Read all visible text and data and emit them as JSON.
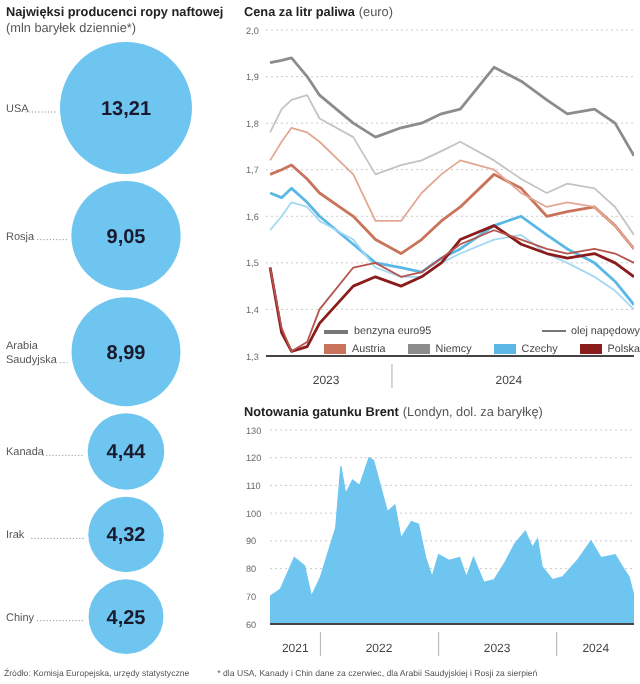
{
  "chart_data": [
    {
      "type": "other",
      "title": "Najwięksi producenci ropy naftowej",
      "subtitle": "(mln baryłek dziennie*)",
      "categories": [
        "USA",
        "Rosja",
        "Arabia Saudyjska",
        "Kanada",
        "Irak",
        "Chiny"
      ],
      "values": [
        13.21,
        9.05,
        8.99,
        4.44,
        4.32,
        4.25
      ],
      "value_labels": [
        "13,21",
        "9,05",
        "8,99",
        "4,44",
        "4,32",
        "4,25"
      ],
      "color": "#6ec6f0",
      "annotations": [
        "Źródło: Komisja Europejska, urzędy statystyczne"
      ]
    },
    {
      "type": "line",
      "title": "Cena za litr paliwa",
      "subtitle": "(euro)",
      "x": [
        "2023-08-06",
        "2023-08-20",
        "2023-09-01",
        "2023-09-20",
        "2023-10-05",
        "2023-11-15",
        "2023-12-12",
        "2024-01-12",
        "2024-02-06",
        "2024-03-01",
        "2024-03-24",
        "2024-05-04",
        "2024-06-06",
        "2024-07-07",
        "2024-08-01",
        "2024-09-03",
        "2024-09-28",
        "2024-10-21"
      ],
      "xlim": [
        "2023-08-01",
        "2024-10-21"
      ],
      "xticks": [
        {
          "value": "2023-10-13",
          "label": "2023"
        },
        {
          "value": "2024-01-01",
          "label": null
        },
        {
          "value": "2024-05-22",
          "label": "2024"
        }
      ],
      "ylim": [
        1.3,
        2.0
      ],
      "yticks": [
        {
          "value": 1.3,
          "label": "1,3"
        },
        {
          "value": 1.4,
          "label": "1,4"
        },
        {
          "value": 1.5,
          "label": "1,5"
        },
        {
          "value": 1.6,
          "label": "1,6"
        },
        {
          "value": 1.7,
          "label": "1,7"
        },
        {
          "value": 1.8,
          "label": "1,8"
        },
        {
          "value": 1.9,
          "label": "1,9"
        },
        {
          "value": 2.0,
          "label": "2,0"
        }
      ],
      "grid": "y",
      "legend": "bottom",
      "annotations": [
        "benzyna euro95",
        "olej napędowy"
      ],
      "series": [
        {
          "name": "Austria",
          "color": "#c8735a",
          "values": [
            1.69,
            1.7,
            1.71,
            1.68,
            1.65,
            1.6,
            1.55,
            1.52,
            1.55,
            1.59,
            1.62,
            1.69,
            1.66,
            1.6,
            1.61,
            1.62,
            1.58,
            1.53
          ]
        },
        {
          "color": "#e3a894",
          "values": [
            1.72,
            1.76,
            1.79,
            1.78,
            1.76,
            1.69,
            1.59,
            1.59,
            1.65,
            1.69,
            1.72,
            1.7,
            1.65,
            1.62,
            1.63,
            1.62,
            1.58,
            1.53
          ]
        },
        {
          "name": "Niemcy",
          "color": "#8c8c8c",
          "values": [
            1.93,
            1.935,
            1.94,
            1.9,
            1.86,
            1.8,
            1.77,
            1.79,
            1.8,
            1.82,
            1.83,
            1.92,
            1.89,
            1.85,
            1.82,
            1.83,
            1.8,
            1.73
          ]
        },
        {
          "color": "#c4c4c4",
          "values": [
            1.78,
            1.83,
            1.85,
            1.86,
            1.81,
            1.77,
            1.69,
            1.71,
            1.72,
            1.74,
            1.76,
            1.72,
            1.68,
            1.65,
            1.67,
            1.66,
            1.62,
            1.56
          ]
        },
        {
          "name": "Czechy",
          "color": "#5bb8e6",
          "values": [
            1.65,
            1.64,
            1.66,
            1.63,
            1.6,
            1.54,
            1.5,
            1.49,
            1.48,
            1.51,
            1.53,
            1.58,
            1.6,
            1.56,
            1.53,
            1.5,
            1.46,
            1.41
          ]
        },
        {
          "color": "#a3d8f2",
          "values": [
            1.57,
            1.6,
            1.63,
            1.62,
            1.59,
            1.55,
            1.49,
            1.47,
            1.47,
            1.5,
            1.52,
            1.55,
            1.56,
            1.52,
            1.5,
            1.47,
            1.44,
            1.4
          ]
        },
        {
          "name": "Polska",
          "color": "#8b1c1c",
          "values": [
            1.49,
            1.35,
            1.31,
            1.32,
            1.37,
            1.45,
            1.47,
            1.45,
            1.47,
            1.5,
            1.55,
            1.58,
            1.54,
            1.52,
            1.51,
            1.52,
            1.5,
            1.47
          ]
        },
        {
          "color": "#b5544d",
          "values": [
            1.49,
            1.36,
            1.31,
            1.33,
            1.4,
            1.49,
            1.5,
            1.47,
            1.48,
            1.51,
            1.54,
            1.57,
            1.55,
            1.53,
            1.52,
            1.53,
            1.52,
            1.5
          ]
        }
      ]
    },
    {
      "type": "area",
      "title": "Notowania gatunku Brent",
      "subtitle": "(Londyn, dol. za baryłkę)",
      "x": [
        "2021-07-29",
        "2021-08-30",
        "2021-10-12",
        "2021-11-13",
        "2021-12-04",
        "2022-01-01",
        "2022-01-26",
        "2022-02-17",
        "2022-03-05",
        "2022-03-20",
        "2022-04-10",
        "2022-05-02",
        "2022-05-31",
        "2022-06-14",
        "2022-07-05",
        "2022-07-27",
        "2022-08-19",
        "2022-09-07",
        "2022-10-09",
        "2022-10-31",
        "2022-11-22",
        "2022-12-12",
        "2023-01-01",
        "2023-02-02",
        "2023-03-07",
        "2023-03-28",
        "2023-04-19",
        "2023-05-21",
        "2023-06-22",
        "2023-07-24",
        "2023-08-25",
        "2023-09-26",
        "2023-10-18",
        "2023-11-03",
        "2023-11-17",
        "2023-12-19",
        "2024-01-19",
        "2024-03-05",
        "2024-04-16",
        "2024-05-17",
        "2024-06-30",
        "2024-07-22",
        "2024-08-12",
        "2024-08-27"
      ],
      "values": [
        70,
        72.5,
        84,
        81,
        70,
        77,
        86.5,
        94.7,
        117,
        107,
        112,
        110,
        120,
        119,
        110,
        100.5,
        103,
        91,
        97,
        96,
        84,
        77,
        85,
        83,
        84,
        77,
        84,
        75,
        76,
        82,
        89,
        93.5,
        87.7,
        90.7,
        80.7,
        76,
        77,
        83,
        90,
        84,
        85,
        80.7,
        77,
        70
      ],
      "color": "#6ec6f0",
      "xlim": [
        "2021-07-29",
        "2024-08-27"
      ],
      "xticks": [
        {
          "value": "2021-10-15",
          "label": "2021"
        },
        {
          "value": "2022-01-01",
          "label": null
        },
        {
          "value": "2022-07-01",
          "label": "2022"
        },
        {
          "value": "2023-01-01",
          "label": null
        },
        {
          "value": "2023-07-01",
          "label": "2023"
        },
        {
          "value": "2024-01-01",
          "label": null
        },
        {
          "value": "2024-05-01",
          "label": "2024"
        }
      ],
      "ylim": [
        60,
        130
      ],
      "yticks": [
        60,
        70,
        80,
        90,
        100,
        110,
        120,
        130
      ],
      "grid": "y",
      "annotations": [
        "* dla USA, Kanady i Chin dane za czerwiec, dla Arabii Saudyjskiej i Rosji za sierpień"
      ]
    }
  ]
}
